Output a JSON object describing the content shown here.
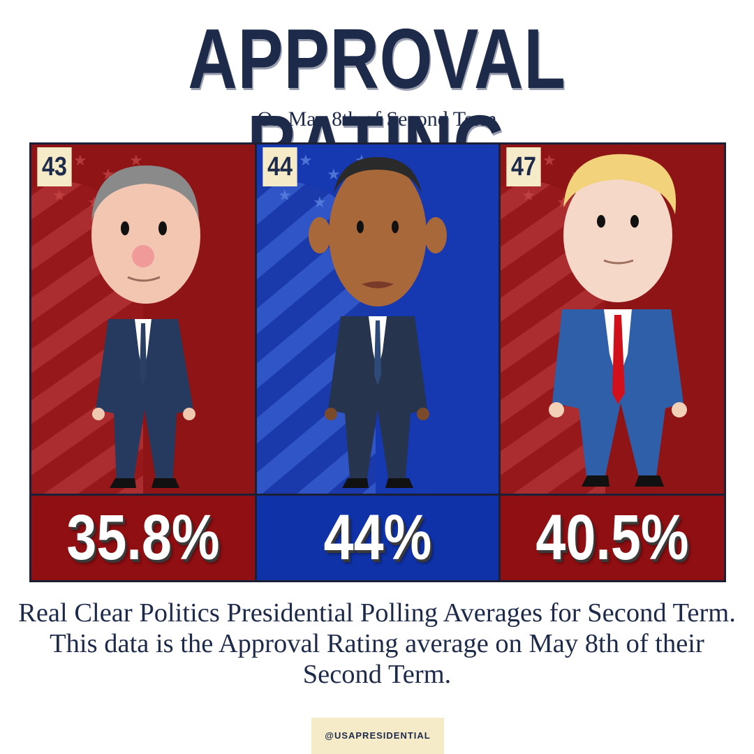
{
  "title": "APPROVAL RATING",
  "subtitle": "On May 8th of Second Term",
  "panels": [
    {
      "number": "43",
      "rating": "35.8%",
      "theme": "red"
    },
    {
      "number": "44",
      "rating": "44%",
      "theme": "blue"
    },
    {
      "number": "47",
      "rating": "40.5%",
      "theme": "red"
    }
  ],
  "note": "Real Clear Politics Presidential Polling Averages for Second Term. This data is the Approval Rating average on May 8th of their Second Term.",
  "handle": "@USAPRESIDENTIAL",
  "colors": {
    "title": "#1e2a4a",
    "red_panel": "#8f0f12",
    "blue_panel": "#1032a8",
    "badge": "#f5ebc8"
  }
}
